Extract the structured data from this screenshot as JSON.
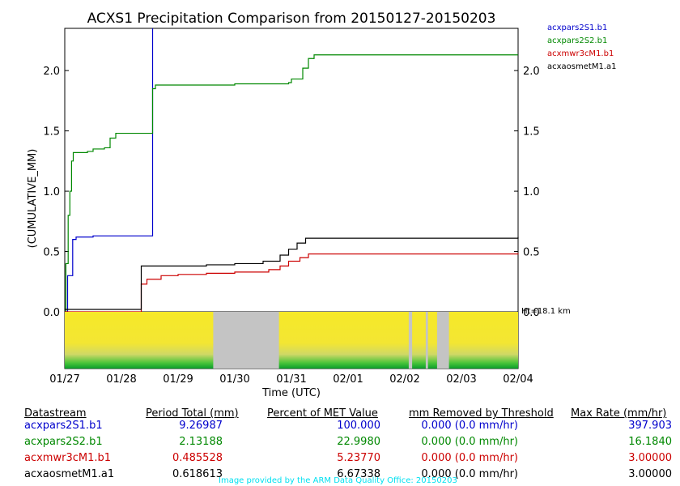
{
  "chart_data": {
    "type": "line",
    "title": "ACXS1 Precipitation Comparison from 20150127-20150203",
    "ylabel": "(CUMULATIVE_MM)",
    "xlabel": "Time (UTC)",
    "ylim": [
      0,
      2.35
    ],
    "xlim": [
      "01/27",
      "02/04"
    ],
    "y_ticks": [
      "0.0",
      "0.5",
      "1.0",
      "1.5",
      "2.0"
    ],
    "x_ticks": [
      "01/27",
      "01/28",
      "01/29",
      "01/30",
      "01/31",
      "02/01",
      "02/02",
      "02/03",
      "02/04"
    ],
    "height_label": "Ht=18.1 km",
    "series": [
      {
        "name": "acxpars2S1.b1",
        "color": "#0000cc",
        "points": [
          [
            0,
            0
          ],
          [
            0.05,
            0.3
          ],
          [
            0.12,
            0.3
          ],
          [
            0.14,
            0.6
          ],
          [
            0.2,
            0.62
          ],
          [
            0.5,
            0.63
          ],
          [
            1.5,
            0.63
          ],
          [
            1.55,
            0.63
          ],
          [
            1.55,
            2.35
          ]
        ]
      },
      {
        "name": "acxpars2S2.b1",
        "color": "#008800",
        "points": [
          [
            0,
            0
          ],
          [
            0.02,
            0.4
          ],
          [
            0.06,
            0.8
          ],
          [
            0.09,
            1.0
          ],
          [
            0.12,
            1.25
          ],
          [
            0.15,
            1.32
          ],
          [
            0.4,
            1.33
          ],
          [
            0.5,
            1.35
          ],
          [
            0.7,
            1.36
          ],
          [
            0.8,
            1.44
          ],
          [
            0.9,
            1.48
          ],
          [
            1.1,
            1.48
          ],
          [
            1.5,
            1.48
          ],
          [
            1.55,
            1.85
          ],
          [
            1.6,
            1.88
          ],
          [
            2.0,
            1.88
          ],
          [
            3.0,
            1.89
          ],
          [
            3.95,
            1.9
          ],
          [
            4.0,
            1.93
          ],
          [
            4.2,
            2.02
          ],
          [
            4.3,
            2.1
          ],
          [
            4.4,
            2.13
          ],
          [
            8.0,
            2.13
          ]
        ]
      },
      {
        "name": "acxmwr3cM1.b1",
        "color": "#cc0000",
        "points": [
          [
            0,
            0
          ],
          [
            1.35,
            0.02
          ],
          [
            1.35,
            0.23
          ],
          [
            1.45,
            0.27
          ],
          [
            1.7,
            0.3
          ],
          [
            2.0,
            0.31
          ],
          [
            2.5,
            0.32
          ],
          [
            3.0,
            0.33
          ],
          [
            3.6,
            0.35
          ],
          [
            3.8,
            0.38
          ],
          [
            3.95,
            0.42
          ],
          [
            4.15,
            0.45
          ],
          [
            4.3,
            0.48
          ],
          [
            8.0,
            0.485
          ]
        ]
      },
      {
        "name": "acxaosmetM1.a1",
        "color": "#000000",
        "points": [
          [
            0,
            0.02
          ],
          [
            1.35,
            0.02
          ],
          [
            1.35,
            0.38
          ],
          [
            1.5,
            0.38
          ],
          [
            2.0,
            0.38
          ],
          [
            2.5,
            0.39
          ],
          [
            3.0,
            0.4
          ],
          [
            3.5,
            0.42
          ],
          [
            3.8,
            0.47
          ],
          [
            3.95,
            0.52
          ],
          [
            4.1,
            0.57
          ],
          [
            4.25,
            0.61
          ],
          [
            8.0,
            0.62
          ]
        ]
      }
    ]
  },
  "qc_gaps_days": [
    [
      2.62,
      3.78
    ],
    [
      6.07,
      6.13
    ],
    [
      6.37,
      6.41
    ],
    [
      6.57,
      6.78
    ]
  ],
  "stats": {
    "headers": [
      "Datastream",
      "Period Total (mm)",
      "Percent of MET Value",
      "mm Removed by Threshold",
      "Max Rate (mm/hr)"
    ],
    "rows": [
      {
        "color": "#0000cc",
        "cells": [
          "acxpars2S1.b1",
          "9.26987",
          "100.000",
          "0.000 (0.0 mm/hr)",
          "397.903"
        ]
      },
      {
        "color": "#008800",
        "cells": [
          "acxpars2S2.b1",
          "2.13188",
          "22.9980",
          "0.000 (0.0 mm/hr)",
          "16.1840"
        ]
      },
      {
        "color": "#cc0000",
        "cells": [
          "acxmwr3cM1.b1",
          "0.485528",
          "5.23770",
          "0.000 (0.0 mm/hr)",
          "3.00000"
        ]
      },
      {
        "color": "#000000",
        "cells": [
          "acxaosmetM1.a1",
          "0.618613",
          "6.67338",
          "0.000 (0.0 mm/hr)",
          "3.00000"
        ]
      }
    ]
  },
  "credit": "Image provided by the ARM Data Quality Office: 20150203"
}
